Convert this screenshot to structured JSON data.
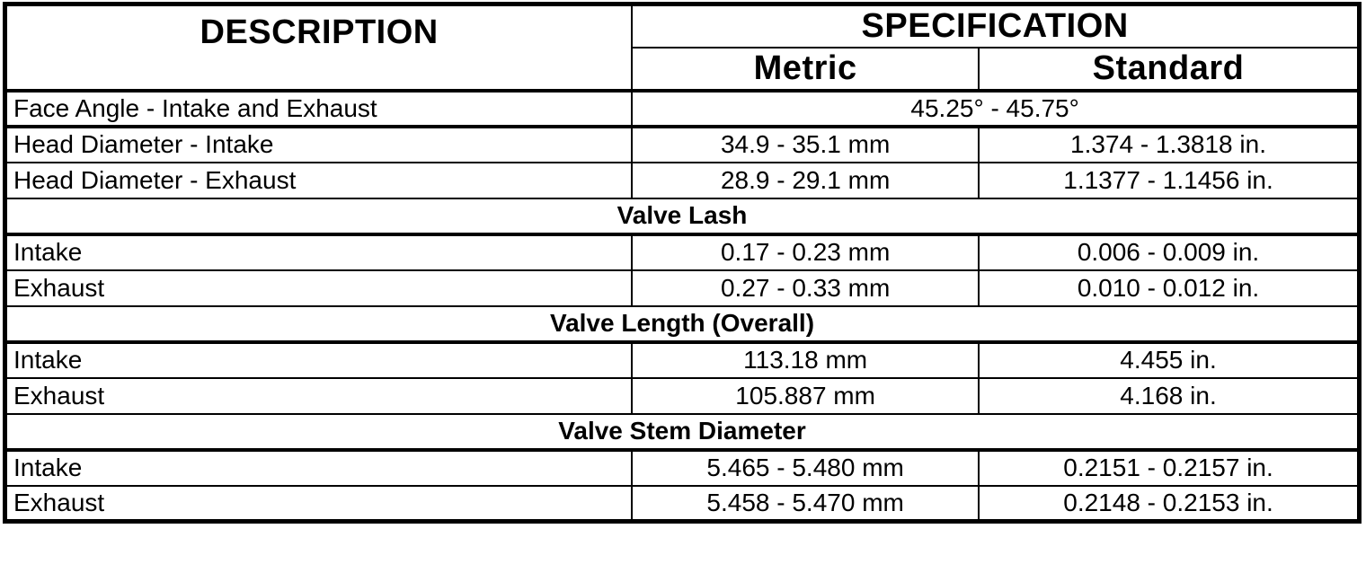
{
  "page": {
    "background_color": "#ffffff",
    "border_color": "#000000",
    "text_color": "#000000"
  },
  "table": {
    "header": {
      "description": "DESCRIPTION",
      "specification": "SPECIFICATION",
      "metric": "Metric",
      "standard": "Standard"
    },
    "rows": [
      {
        "type": "data-span",
        "description": "Face Angle - Intake and Exhaust",
        "value": "45.25° - 45.75°"
      },
      {
        "type": "data",
        "description": "Head Diameter - Intake",
        "metric": "34.9 - 35.1 mm",
        "standard": "1.374 - 1.3818 in."
      },
      {
        "type": "data",
        "description": "Head Diameter - Exhaust",
        "metric": "28.9 - 29.1 mm",
        "standard": "1.1377 - 1.1456 in."
      },
      {
        "type": "section",
        "label": "Valve Lash"
      },
      {
        "type": "data",
        "description": "Intake",
        "metric": "0.17 - 0.23 mm",
        "standard": "0.006 - 0.009 in."
      },
      {
        "type": "data",
        "description": "Exhaust",
        "metric": "0.27 - 0.33 mm",
        "standard": "0.010 - 0.012 in."
      },
      {
        "type": "section",
        "label": "Valve Length (Overall)"
      },
      {
        "type": "data",
        "description": "Intake",
        "metric": "113.18 mm",
        "standard": "4.455 in."
      },
      {
        "type": "data",
        "description": "Exhaust",
        "metric": "105.887 mm",
        "standard": "4.168 in."
      },
      {
        "type": "section",
        "label": "Valve Stem Diameter"
      },
      {
        "type": "data",
        "description": "Intake",
        "metric": "5.465 - 5.480 mm",
        "standard": "0.2151 - 0.2157 in."
      },
      {
        "type": "data",
        "description": "Exhaust",
        "metric": "5.458 - 5.470 mm",
        "standard": "0.2148 - 0.2153 in."
      }
    ]
  }
}
